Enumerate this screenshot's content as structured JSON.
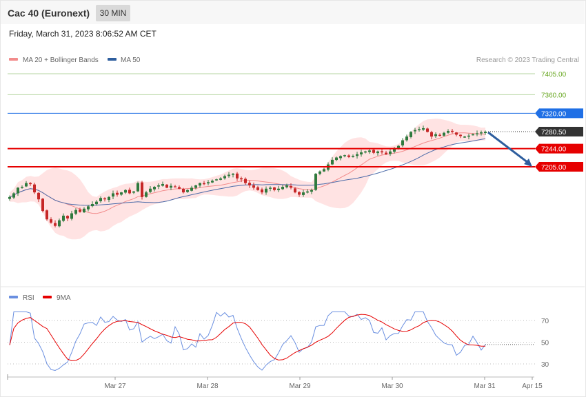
{
  "header": {
    "title": "Cac 40 (Euronext)",
    "timeframe": "30 MIN"
  },
  "timestamp": "Friday, March 31, 2023 8:06:52 AM CET",
  "copyright": "Research © 2023 Trading Central",
  "colors": {
    "resistance2": "#66a61e",
    "resistance1": "#1f6fe5",
    "last": "#333333",
    "support": "#e60000",
    "arrow": "#2e5e9e",
    "ma20": "#f28b8b",
    "ma50": "#4a6aa8",
    "band": "#ffdede",
    "up": "#2f7a3e",
    "down": "#c62828",
    "rsi": "#6a8fe0",
    "rsi_ma": "#e60000"
  },
  "chart_data": [
    {
      "type": "line",
      "legend": [
        {
          "name": "MA 20 + Bollinger Bands",
          "color": "#f28b8b"
        },
        {
          "name": "MA 50",
          "color": "#2e5e9e"
        }
      ],
      "ylim": [
        7050,
        7420
      ],
      "x_ticks": [
        "Mar 27",
        "Mar 28",
        "Mar 29",
        "Mar 30",
        "Mar 31",
        "Apr 15"
      ],
      "levels": [
        {
          "label": "7405.00",
          "value": 7405,
          "kind": "resistance"
        },
        {
          "label": "7360.00",
          "value": 7360,
          "kind": "resistance"
        },
        {
          "label": "7320.00",
          "value": 7320,
          "kind": "pivot"
        },
        {
          "label": "7280.50",
          "value": 7280.5,
          "kind": "last"
        },
        {
          "label": "7244.00",
          "value": 7244,
          "kind": "support"
        },
        {
          "label": "7205.00",
          "value": 7205,
          "kind": "support"
        }
      ],
      "closes": [
        7140,
        7148,
        7160,
        7162,
        7170,
        7168,
        7150,
        7135,
        7110,
        7092,
        7085,
        7078,
        7090,
        7100,
        7094,
        7105,
        7112,
        7108,
        7115,
        7120,
        7125,
        7130,
        7138,
        7135,
        7140,
        7148,
        7145,
        7150,
        7155,
        7148,
        7152,
        7170,
        7140,
        7150,
        7158,
        7162,
        7165,
        7168,
        7160,
        7164,
        7162,
        7158,
        7150,
        7155,
        7160,
        7165,
        7170,
        7168,
        7172,
        7175,
        7178,
        7180,
        7185,
        7188,
        7190,
        7180,
        7178,
        7170,
        7165,
        7160,
        7155,
        7150,
        7158,
        7160,
        7155,
        7158,
        7162,
        7165,
        7160,
        7150,
        7145,
        7150,
        7152,
        7155,
        7190,
        7195,
        7200,
        7210,
        7220,
        7225,
        7228,
        7230,
        7226,
        7228,
        7232,
        7236,
        7238,
        7240,
        7235,
        7238,
        7236,
        7232,
        7238,
        7245,
        7250,
        7262,
        7270,
        7280,
        7284,
        7286,
        7288,
        7280,
        7270,
        7275,
        7272,
        7278,
        7282,
        7280,
        7274,
        7271,
        7270,
        7272,
        7275,
        7277,
        7279,
        7280.5
      ],
      "rsi": {
        "ylim": [
          20,
          80
        ],
        "ticks": [
          30,
          50,
          70
        ],
        "legend": [
          {
            "name": "RSI",
            "color": "#6a8fe0"
          },
          {
            "name": "9MA",
            "color": "#e60000"
          }
        ]
      }
    }
  ]
}
